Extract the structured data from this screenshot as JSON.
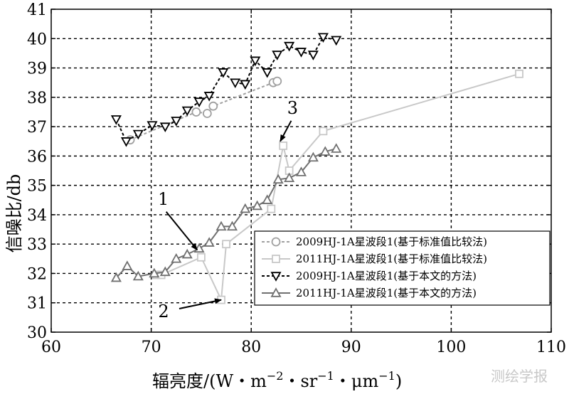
{
  "chart_data": {
    "type": "line",
    "xlabel": "辐亮度/(W・m",
    "xlabel_sup1": "−2",
    "xlabel_mid": "・sr",
    "xlabel_sup2": "−1",
    "xlabel_mid2": "・μm",
    "xlabel_sup3": "−1",
    "xlabel_end": ")",
    "ylabel": "信噪比/db",
    "xlim": [
      60,
      110
    ],
    "ylim": [
      30,
      41
    ],
    "xticks": [
      60,
      70,
      80,
      90,
      100,
      110
    ],
    "yticks": [
      30,
      31,
      32,
      33,
      34,
      35,
      36,
      37,
      38,
      39,
      40,
      41
    ],
    "grid": true,
    "legend_position": "bottom-right",
    "series": [
      {
        "name": "2009HJ-1A星波段1(基于标准值比较法)",
        "color": "#a0a0a0",
        "dash": "4,3",
        "marker": "circle",
        "x": [
          67.9,
          74.5,
          75.6,
          76.2,
          82.2,
          82.6
        ],
        "y": [
          36.55,
          37.5,
          37.45,
          37.7,
          38.5,
          38.55
        ]
      },
      {
        "name": "2011HJ-1A星波段1(基于标准值比较法)",
        "color": "#c8c8c8",
        "dash": "",
        "marker": "square",
        "x": [
          70.5,
          71.0,
          75.0,
          77.0,
          77.5,
          82.0,
          83.2,
          83.8,
          87.2,
          106.8
        ],
        "y": [
          31.95,
          31.95,
          32.55,
          31.1,
          33.0,
          34.2,
          36.35,
          35.5,
          36.85,
          38.8
        ]
      },
      {
        "name": "2009HJ-1A星波段1(基于本文的方法)",
        "color": "#000000",
        "dash": "4,3",
        "marker": "triangle-down",
        "x": [
          66.5,
          67.5,
          68.7,
          70.1,
          71.4,
          72.5,
          73.6,
          74.8,
          75.8,
          77.2,
          78.4,
          79.4,
          80.4,
          81.6,
          82.6,
          83.8,
          85.0,
          86.2,
          87.2,
          88.5
        ],
        "y": [
          37.25,
          36.5,
          36.75,
          37.05,
          37.0,
          37.2,
          37.55,
          37.85,
          38.05,
          38.85,
          38.5,
          38.45,
          39.25,
          38.85,
          39.45,
          39.75,
          39.55,
          39.45,
          40.05,
          39.95
        ]
      },
      {
        "name": "2011HJ-1A星波段1(基于本文的方法)",
        "color": "#707070",
        "dash": "",
        "marker": "triangle-up",
        "x": [
          66.5,
          67.6,
          68.7,
          70.3,
          71.4,
          72.5,
          73.6,
          74.8,
          75.8,
          77.0,
          78.1,
          79.4,
          80.6,
          81.6,
          82.7,
          83.8,
          85.0,
          86.2,
          87.4,
          88.5
        ],
        "y": [
          31.85,
          32.25,
          31.9,
          32.0,
          32.05,
          32.5,
          32.65,
          32.85,
          33.05,
          33.6,
          33.6,
          34.2,
          34.3,
          34.5,
          35.2,
          35.25,
          35.45,
          35.95,
          36.15,
          36.25
        ]
      }
    ],
    "annotations": [
      {
        "label": "1",
        "arrow_from": [
          71.5,
          34.1
        ],
        "arrow_to": [
          74.6,
          32.8
        ]
      },
      {
        "label": "2",
        "arrow_from": [
          72.8,
          30.8
        ],
        "arrow_to": [
          77.0,
          31.1
        ]
      },
      {
        "label": "3",
        "arrow_from": [
          84.0,
          37.2
        ],
        "arrow_to": [
          82.9,
          36.5
        ]
      }
    ]
  },
  "watermark": "测绘学报"
}
